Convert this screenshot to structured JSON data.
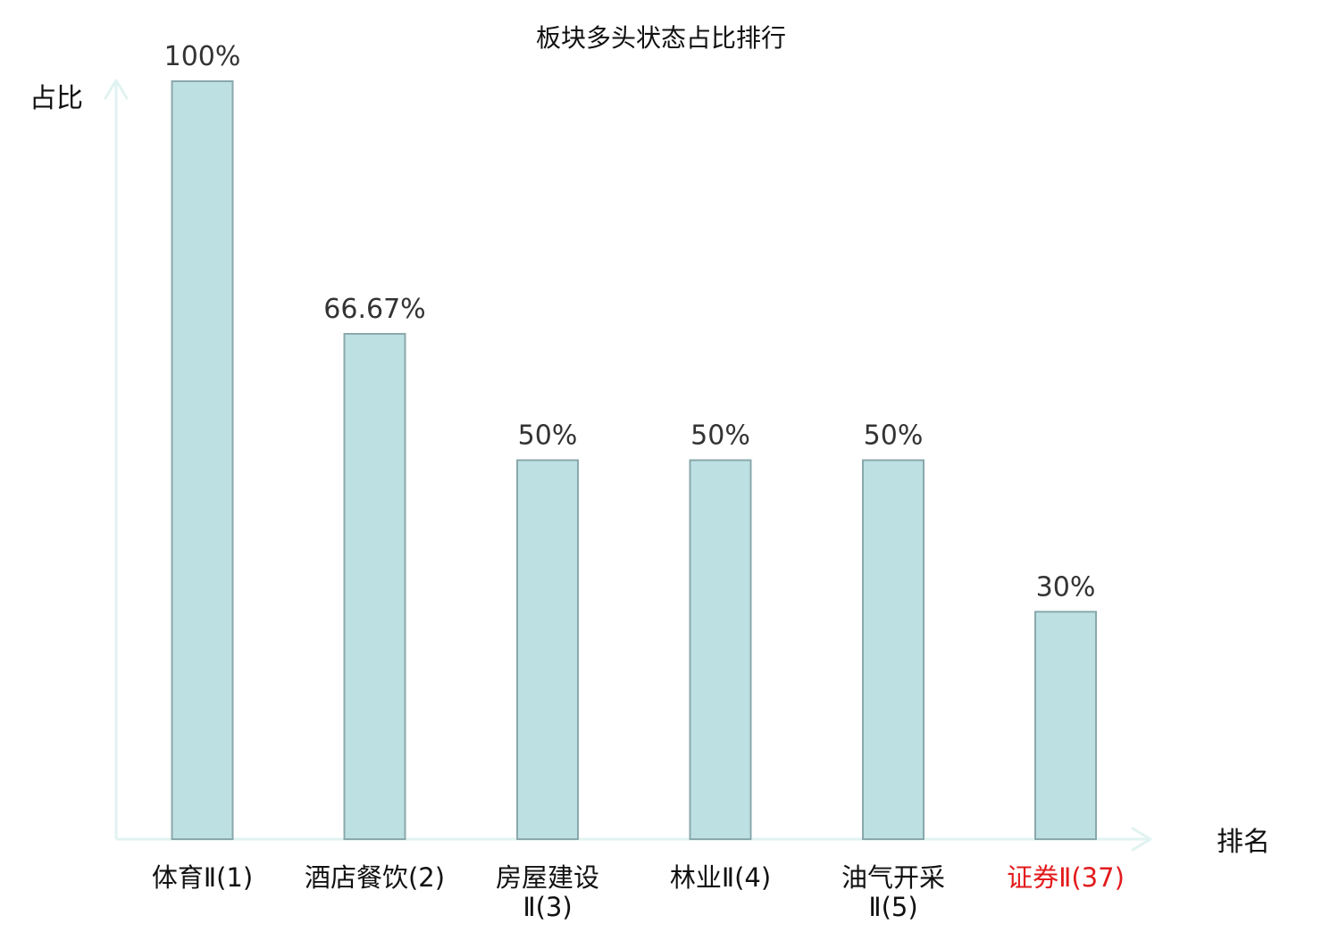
{
  "chart_data": {
    "type": "bar",
    "title": "板块多头状态占比排行",
    "ylabel": "占比",
    "xlabel": "排名",
    "ylim": [
      0,
      100
    ],
    "grid": false,
    "legend": "none",
    "categories": [
      {
        "line1": "体育Ⅱ(1)",
        "line2": "",
        "highlight": false
      },
      {
        "line1": "酒店餐饮(2)",
        "line2": "",
        "highlight": false
      },
      {
        "line1": "房屋建设",
        "line2": "Ⅱ(3)",
        "highlight": false
      },
      {
        "line1": "林业Ⅱ(4)",
        "line2": "",
        "highlight": false
      },
      {
        "line1": "油气开采",
        "line2": "Ⅱ(5)",
        "highlight": false
      },
      {
        "line1": "证券Ⅱ(37)",
        "line2": "",
        "highlight": true
      }
    ],
    "values": [
      100,
      66.67,
      50,
      50,
      50,
      30
    ],
    "value_labels": [
      "100%",
      "66.67%",
      "50%",
      "50%",
      "50%",
      "30%"
    ],
    "colors": {
      "bar_fill": "#bde0e3",
      "bar_stroke": "#8aa8ac",
      "axis": "#e0f3f1",
      "text": "#333333",
      "label": "#111111",
      "highlight": "#e31a1c"
    }
  }
}
